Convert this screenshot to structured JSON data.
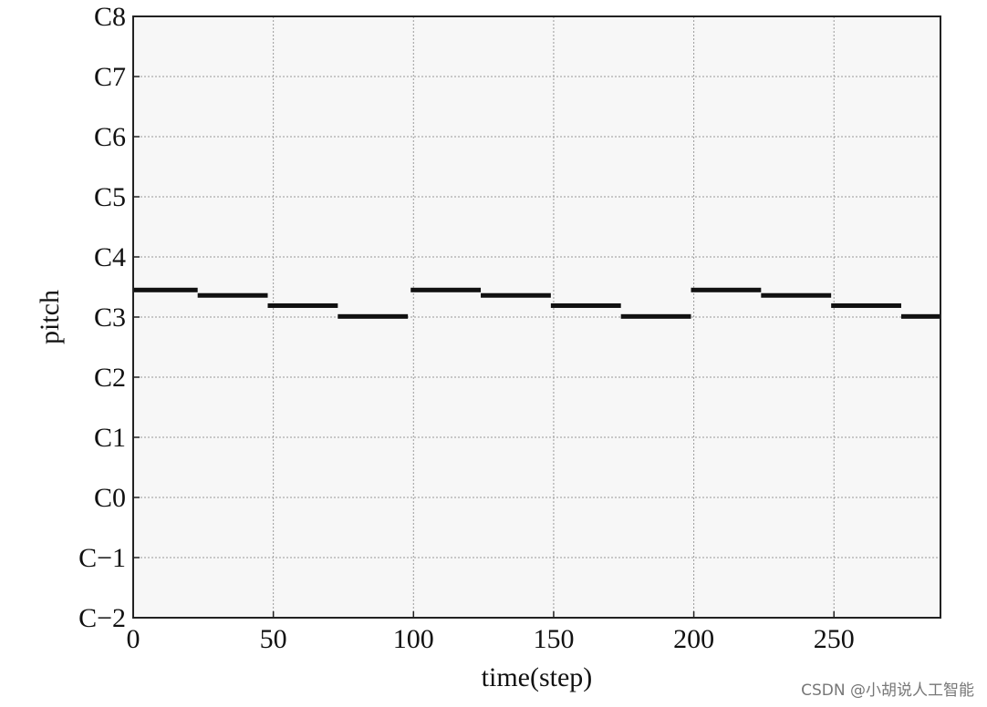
{
  "chart_data": {
    "type": "line",
    "title": "",
    "xlabel": "time(step)",
    "ylabel": "pitch",
    "xlim": [
      0,
      288
    ],
    "ylim": [
      0,
      10
    ],
    "x_ticks": [
      0,
      50,
      100,
      150,
      200,
      250
    ],
    "y_ticks": [
      {
        "value": 0,
        "label": "C−2"
      },
      {
        "value": 1,
        "label": "C−1"
      },
      {
        "value": 2,
        "label": "C0"
      },
      {
        "value": 3,
        "label": "C1"
      },
      {
        "value": 4,
        "label": "C2"
      },
      {
        "value": 5,
        "label": "C3"
      },
      {
        "value": 6,
        "label": "C4"
      },
      {
        "value": 7,
        "label": "C5"
      },
      {
        "value": 8,
        "label": "C6"
      },
      {
        "value": 9,
        "label": "C7"
      },
      {
        "value": 10,
        "label": "C8"
      }
    ],
    "grid": true,
    "notes": [
      {
        "start": 0,
        "end": 23,
        "pitch": 5.45
      },
      {
        "start": 23,
        "end": 48,
        "pitch": 5.36
      },
      {
        "start": 48,
        "end": 73,
        "pitch": 5.19
      },
      {
        "start": 73,
        "end": 98,
        "pitch": 5.01
      },
      {
        "start": 99,
        "end": 124,
        "pitch": 5.45
      },
      {
        "start": 124,
        "end": 149,
        "pitch": 5.36
      },
      {
        "start": 149,
        "end": 174,
        "pitch": 5.19
      },
      {
        "start": 174,
        "end": 199,
        "pitch": 5.01
      },
      {
        "start": 199,
        "end": 224,
        "pitch": 5.45
      },
      {
        "start": 224,
        "end": 249,
        "pitch": 5.36
      },
      {
        "start": 249,
        "end": 274,
        "pitch": 5.19
      },
      {
        "start": 274,
        "end": 288,
        "pitch": 5.01
      }
    ]
  },
  "watermark": "CSDN @小胡说人工智能"
}
